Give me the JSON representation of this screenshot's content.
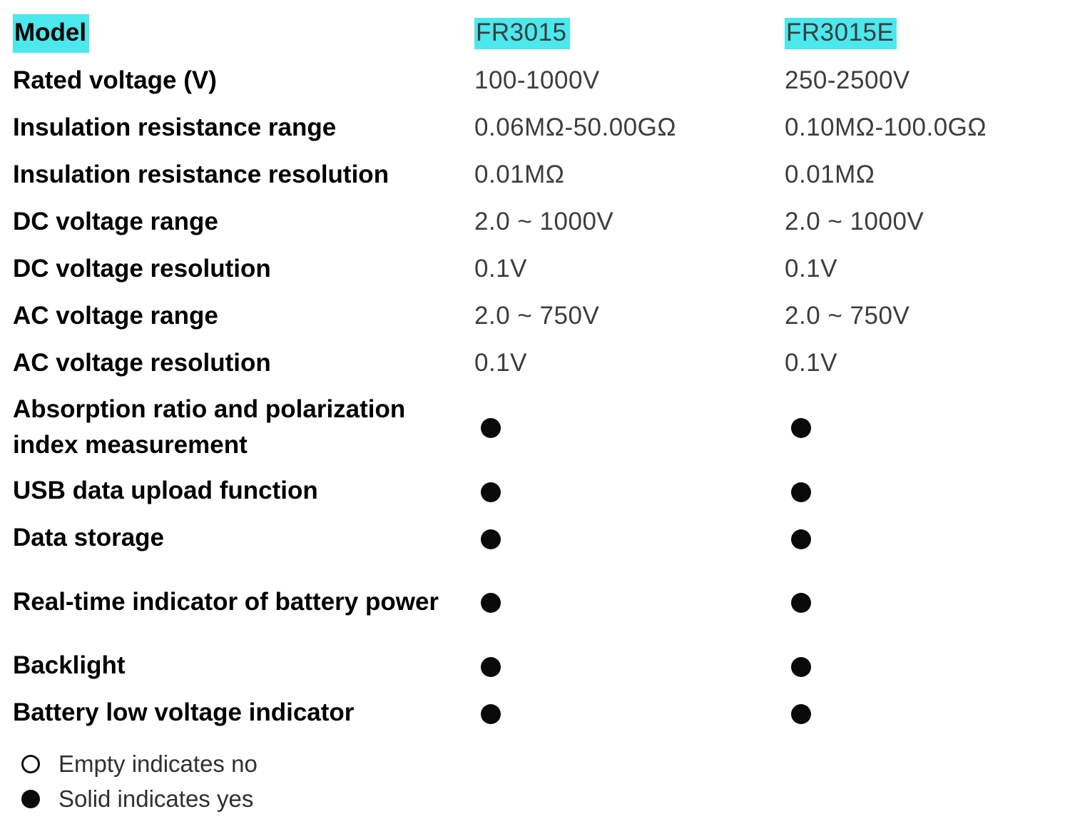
{
  "colors": {
    "highlight": "#4be8ee",
    "label_text": "#000000",
    "value_text": "#3d3d3d",
    "dot": "#0a0a0a"
  },
  "table": {
    "model_row": {
      "label": "Model",
      "col1": "FR3015",
      "col2": "FR3015E"
    },
    "rows": [
      {
        "label": "Rated voltage (V)",
        "col1": "100-1000V",
        "col2": "250-2500V"
      },
      {
        "label": "Insulation resistance range",
        "col1": "0.06MΩ-50.00GΩ",
        "col2": "0.10MΩ-100.0GΩ"
      },
      {
        "label": "Insulation resistance resolution",
        "col1": "0.01MΩ",
        "col2": "0.01MΩ"
      },
      {
        "label": "DC voltage range",
        "col1": "2.0 ~ 1000V",
        "col2": "2.0 ~ 1000V"
      },
      {
        "label": "DC voltage resolution",
        "col1": "0.1V",
        "col2": "0.1V"
      },
      {
        "label": "AC voltage range",
        "col1": "2.0 ~ 750V",
        "col2": "2.0 ~ 750V"
      },
      {
        "label": "AC voltage resolution",
        "col1": "0.1V",
        "col2": "0.1V"
      },
      {
        "label": "Absorption ratio and polarization index measurement",
        "col1": "solid",
        "col2": "solid",
        "dot": true
      },
      {
        "label": "USB data upload function",
        "col1": "solid",
        "col2": "solid",
        "dot": true
      },
      {
        "label": "Data storage",
        "col1": "solid",
        "col2": "solid",
        "dot": true
      },
      {
        "label": "Real-time indicator of battery power",
        "col1": "solid",
        "col2": "solid",
        "dot": true
      },
      {
        "label": "Backlight",
        "col1": "solid",
        "col2": "solid",
        "dot": true
      },
      {
        "label": "Battery low voltage indicator",
        "col1": "solid",
        "col2": "solid",
        "dot": true
      }
    ],
    "legend": [
      {
        "symbol": "empty-circle",
        "text": "Empty indicates no"
      },
      {
        "symbol": "solid-circle",
        "text": "Solid indicates yes"
      }
    ]
  }
}
